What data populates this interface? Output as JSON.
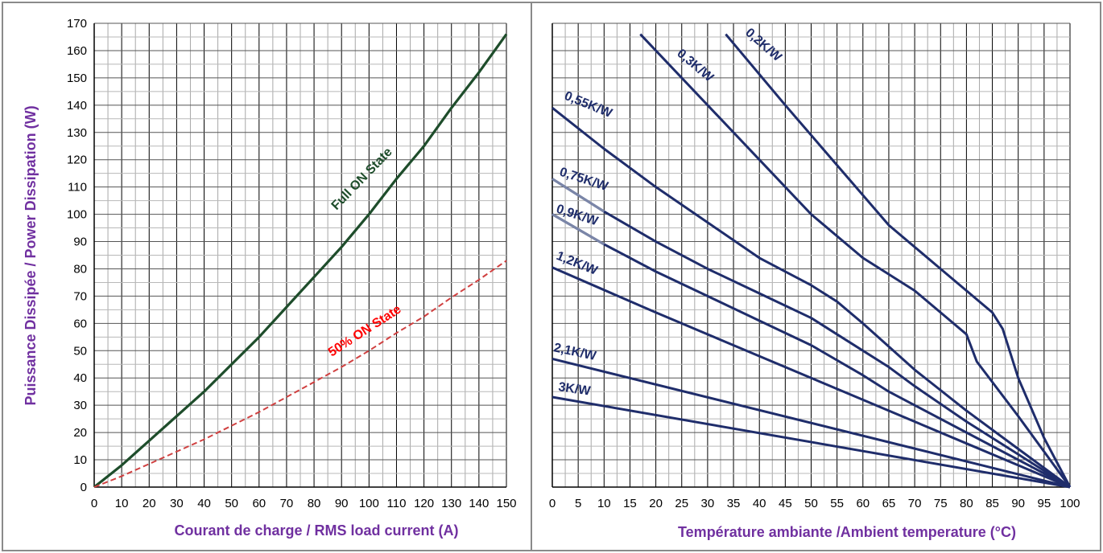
{
  "chart_data": [
    {
      "type": "line",
      "title": "",
      "xlabel": "Courant de charge / RMS load current (A)",
      "ylabel": "Puissance Dissipée / Power Dissipation (W)",
      "xlim": [
        0,
        150
      ],
      "ylim": [
        0,
        170
      ],
      "x_ticks": [
        "0",
        "10",
        "20",
        "30",
        "40",
        "50",
        "60",
        "70",
        "80",
        "90",
        "100",
        "110",
        "120",
        "130",
        "140",
        "150"
      ],
      "y_ticks": [
        "0",
        "10",
        "20",
        "30",
        "40",
        "50",
        "60",
        "70",
        "80",
        "90",
        "100",
        "110",
        "120",
        "130",
        "140",
        "150",
        "160",
        "170"
      ],
      "grid": true,
      "colors": {
        "axis_label": "#7030a0",
        "full_on": "#1e4d2b",
        "half_on": "#d04040",
        "half_on_label": "#ff0000"
      },
      "series": [
        {
          "name": "Full ON State",
          "style": "solid",
          "x": [
            0,
            10,
            20,
            30,
            40,
            50,
            60,
            70,
            80,
            90,
            100,
            110,
            120,
            130,
            140,
            150
          ],
          "y": [
            0,
            8,
            17,
            26,
            35,
            45,
            55,
            66,
            77,
            88,
            100,
            113,
            125,
            139,
            152,
            166
          ]
        },
        {
          "name": "50% ON State",
          "style": "dashed",
          "x": [
            0,
            10,
            20,
            30,
            40,
            50,
            60,
            70,
            80,
            90,
            100,
            110,
            120,
            130,
            140,
            150
          ],
          "y": [
            0,
            4,
            8.5,
            13,
            17.5,
            22.5,
            27.5,
            33,
            38.5,
            44,
            50,
            56.5,
            62.5,
            69.5,
            76,
            83
          ]
        }
      ]
    },
    {
      "type": "line",
      "title": "",
      "xlabel": "Température ambiante /Ambient temperature (°C)",
      "ylabel": "",
      "xlim": [
        0,
        100
      ],
      "ylim": [
        0,
        170
      ],
      "x_ticks": [
        "0",
        "5",
        "10",
        "15",
        "20",
        "25",
        "30",
        "35",
        "40",
        "45",
        "50",
        "55",
        "60",
        "65",
        "70",
        "75",
        "80",
        "85",
        "90",
        "95",
        "100"
      ],
      "grid": true,
      "colors": {
        "curves": "#1f2d6b",
        "curve_start": "#7b86a8"
      },
      "series": [
        {
          "name": "0,2K/W",
          "x": [
            33.5,
            45,
            55,
            65,
            75,
            80,
            85,
            87,
            90,
            95,
            100
          ],
          "y": [
            166,
            140,
            118,
            96,
            80,
            72,
            64,
            58,
            40,
            18,
            0
          ]
        },
        {
          "name": "0,3K/W",
          "x": [
            17,
            30,
            40,
            50,
            60,
            70,
            75,
            80,
            82,
            90,
            100
          ],
          "y": [
            166,
            140,
            120,
            100,
            84,
            72,
            64,
            56,
            46,
            26,
            0
          ]
        },
        {
          "name": "0,55K/W",
          "x": [
            0,
            10,
            20,
            30,
            40,
            50,
            55,
            60,
            70,
            80,
            90,
            100
          ],
          "y": [
            139,
            124,
            110,
            97,
            84,
            74,
            68,
            60,
            43,
            28,
            14,
            0
          ]
        },
        {
          "name": "0,75K/W",
          "x": [
            0,
            10,
            20,
            30,
            40,
            50,
            55,
            65,
            70,
            80,
            90,
            100
          ],
          "y": [
            113,
            101,
            90,
            80,
            71,
            62,
            56,
            44,
            37,
            24,
            12,
            0
          ]
        },
        {
          "name": "0,9K/W",
          "x": [
            0,
            10,
            20,
            30,
            40,
            50,
            60,
            65,
            70,
            80,
            90,
            100
          ],
          "y": [
            100,
            89,
            79,
            70,
            61,
            52,
            41,
            35,
            30,
            20,
            10,
            0
          ]
        },
        {
          "name": "1,2K/W",
          "x": [
            0,
            20,
            40,
            60,
            80,
            100
          ],
          "y": [
            80.5,
            64,
            48,
            32,
            16,
            0
          ]
        },
        {
          "name": "2,1K/W",
          "x": [
            0,
            100
          ],
          "y": [
            47,
            0
          ]
        },
        {
          "name": "3K/W",
          "x": [
            0,
            100
          ],
          "y": [
            33,
            0
          ]
        }
      ]
    }
  ]
}
